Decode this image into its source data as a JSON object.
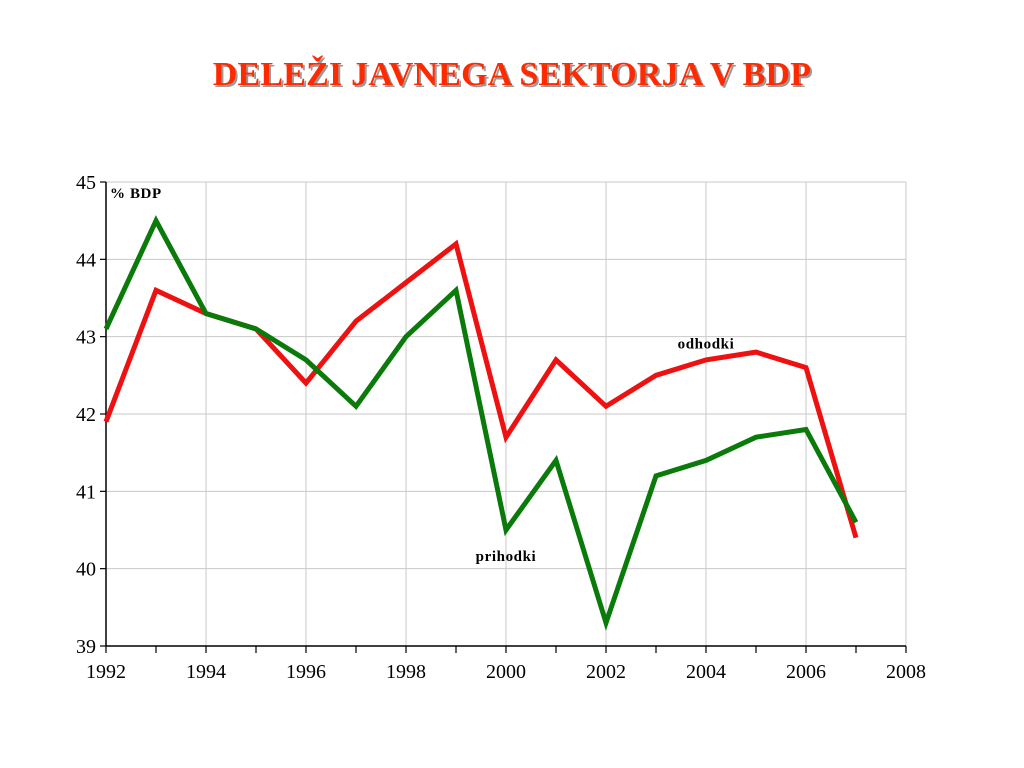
{
  "slide": {
    "title": "DELEŽI JAVNEGA SEKTORJA V BDP",
    "title_color": "#ff2a00"
  },
  "chart_data": {
    "type": "line",
    "title": "DELEŽI JAVNEGA SEKTORJA V BDP",
    "xlabel": "",
    "ylabel": "% BDP",
    "xlim": [
      1992,
      2008
    ],
    "ylim": [
      39,
      45
    ],
    "x_ticks": [
      1992,
      1994,
      1996,
      1998,
      2000,
      2002,
      2004,
      2006,
      2008
    ],
    "y_ticks": [
      39,
      40,
      41,
      42,
      43,
      44,
      45
    ],
    "grid": true,
    "legend": "none (series labeled directly on chart)",
    "x": [
      1992,
      1993,
      1994,
      1995,
      1996,
      1997,
      1998,
      1999,
      2000,
      2001,
      2002,
      2003,
      2004,
      2005,
      2006,
      2007
    ],
    "series": [
      {
        "name": "odhodki",
        "color": "#ee1111",
        "values": [
          41.9,
          43.6,
          43.3,
          43.1,
          42.4,
          43.2,
          43.7,
          44.2,
          41.7,
          42.7,
          42.1,
          42.5,
          42.7,
          42.8,
          42.6,
          40.4
        ]
      },
      {
        "name": "prihodki",
        "color": "#0a7a0a",
        "values": [
          43.1,
          44.5,
          43.3,
          43.1,
          42.7,
          42.1,
          43.0,
          43.6,
          40.5,
          41.4,
          39.3,
          41.2,
          41.4,
          41.7,
          41.8,
          40.6
        ]
      }
    ],
    "annotations": [
      {
        "text": "odhodki",
        "series": "odhodki",
        "near_x": 2004,
        "near_y": 42.85
      },
      {
        "text": "prihodki",
        "series": "prihodki",
        "near_x": 2000,
        "near_y": 40.1
      }
    ]
  }
}
